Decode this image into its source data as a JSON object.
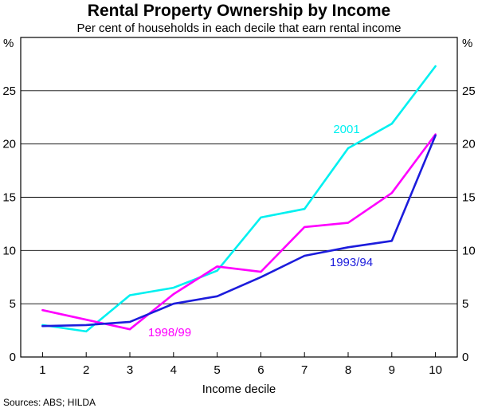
{
  "chart_data": {
    "type": "line",
    "title": "Rental Property Ownership by Income",
    "subtitle": "Per cent of households in each decile that earn rental income",
    "xlabel": "Income decile",
    "ylabel_left": "%",
    "ylabel_right": "%",
    "categories": [
      "1",
      "2",
      "3",
      "4",
      "5",
      "6",
      "7",
      "8",
      "9",
      "10"
    ],
    "x": [
      1,
      2,
      3,
      4,
      5,
      6,
      7,
      8,
      9,
      10
    ],
    "ylim": [
      0,
      30
    ],
    "yticks": [
      0,
      5,
      10,
      15,
      20,
      25
    ],
    "ytick_labels": [
      "0",
      "5",
      "10",
      "15",
      "20",
      "25"
    ],
    "grid": true,
    "series": [
      {
        "name": "1993/94",
        "color": "#1c1cdc",
        "values": [
          2.9,
          3.0,
          3.3,
          5.0,
          5.7,
          7.5,
          9.5,
          10.3,
          10.9,
          20.8
        ]
      },
      {
        "name": "1998/99",
        "color": "#ff00ff",
        "values": [
          4.4,
          3.5,
          2.6,
          5.9,
          8.5,
          8.0,
          12.2,
          12.6,
          15.4,
          20.9
        ]
      },
      {
        "name": "2001",
        "color": "#00f0f0",
        "values": [
          3.0,
          2.4,
          5.8,
          6.5,
          8.1,
          13.1,
          13.9,
          19.6,
          21.9,
          27.3
        ]
      }
    ],
    "source": "Sources: ABS; HILDA"
  }
}
